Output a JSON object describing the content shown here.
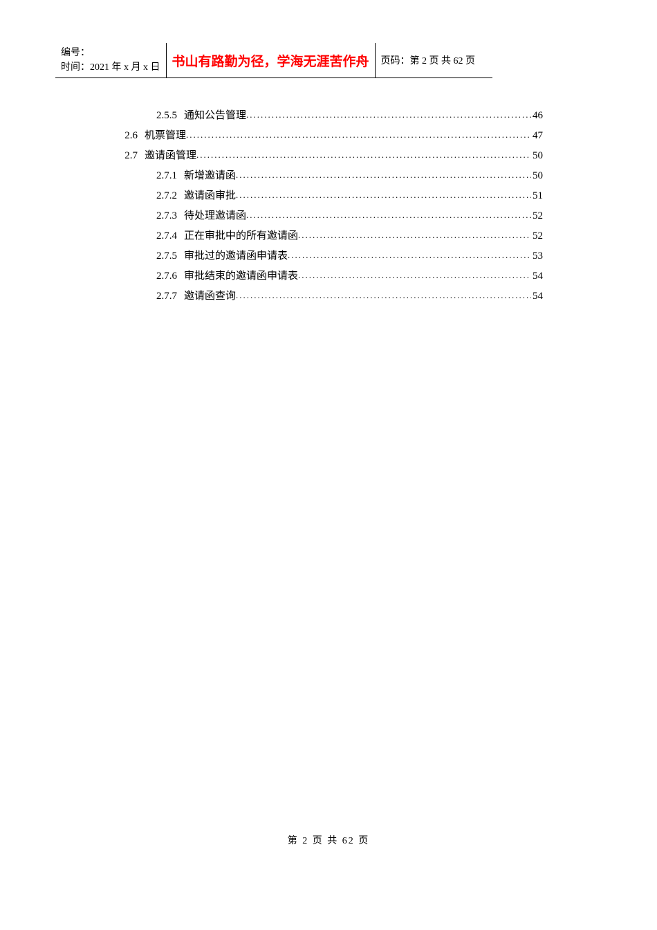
{
  "header": {
    "id_label": "编号：",
    "time_label": "时间：2021 年 x 月 x 日",
    "motto": "书山有路勤为径，学海无涯苦作舟",
    "page_label": "页码：第 2 页  共 62 页"
  },
  "toc": {
    "entries": [
      {
        "level": 3,
        "num": "2.5.5",
        "title": "通知公告管理",
        "page": "46"
      },
      {
        "level": 2,
        "num": "2.6",
        "title": "机票管理",
        "page": "47"
      },
      {
        "level": 2,
        "num": "2.7",
        "title": "邀请函管理",
        "page": "50"
      },
      {
        "level": 3,
        "num": "2.7.1",
        "title": "新增邀请函",
        "page": "50"
      },
      {
        "level": 3,
        "num": "2.7.2",
        "title": "邀请函审批",
        "page": "51"
      },
      {
        "level": 3,
        "num": "2.7.3",
        "title": "待处理邀请函",
        "page": "52"
      },
      {
        "level": 3,
        "num": "2.7.4",
        "title": "正在审批中的所有邀请函",
        "page": "52"
      },
      {
        "level": 3,
        "num": "2.7.5",
        "title": "审批过的邀请函申请表",
        "page": "53"
      },
      {
        "level": 3,
        "num": "2.7.6",
        "title": "审批结束的邀请函申请表",
        "page": "54"
      },
      {
        "level": 3,
        "num": "2.7.7",
        "title": "邀请函查询",
        "page": "54"
      }
    ]
  },
  "footer": {
    "text": "第 2 页 共 62 页"
  }
}
